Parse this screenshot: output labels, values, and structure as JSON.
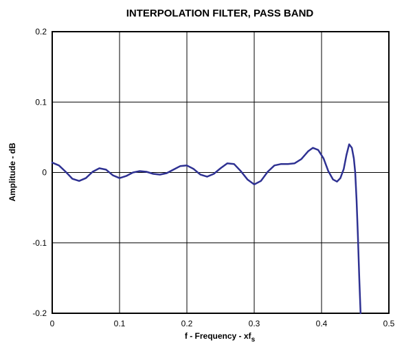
{
  "chart_data": {
    "type": "line",
    "title": "INTERPOLATION FILTER, PASS BAND",
    "xlabel": "f - Frequency - xf",
    "xlabel_subscript": "s",
    "ylabel": "Amplitude - dB",
    "xlim": [
      0,
      0.5
    ],
    "ylim": [
      -0.2,
      0.2
    ],
    "xticks": [
      "0",
      "0.1",
      "0.2",
      "0.3",
      "0.4",
      "0.5"
    ],
    "yticks": [
      "0.2",
      "0.1",
      "0",
      "-0.1",
      "-0.2"
    ],
    "grid": true,
    "line_color": "#2e3192",
    "series": [
      {
        "values": [
          [
            0.0,
            0.014
          ],
          [
            0.01,
            0.01
          ],
          [
            0.02,
            0.001
          ],
          [
            0.03,
            -0.009
          ],
          [
            0.04,
            -0.012
          ],
          [
            0.05,
            -0.008
          ],
          [
            0.06,
            0.001
          ],
          [
            0.07,
            0.006
          ],
          [
            0.08,
            0.004
          ],
          [
            0.09,
            -0.004
          ],
          [
            0.1,
            -0.008
          ],
          [
            0.11,
            -0.005
          ],
          [
            0.12,
            0.0
          ],
          [
            0.13,
            0.002
          ],
          [
            0.14,
            0.001
          ],
          [
            0.15,
            -0.002
          ],
          [
            0.16,
            -0.003
          ],
          [
            0.17,
            -0.001
          ],
          [
            0.18,
            0.004
          ],
          [
            0.19,
            0.009
          ],
          [
            0.2,
            0.01
          ],
          [
            0.21,
            0.005
          ],
          [
            0.22,
            -0.003
          ],
          [
            0.23,
            -0.006
          ],
          [
            0.24,
            -0.002
          ],
          [
            0.25,
            0.006
          ],
          [
            0.26,
            0.013
          ],
          [
            0.27,
            0.012
          ],
          [
            0.28,
            0.002
          ],
          [
            0.29,
            -0.01
          ],
          [
            0.3,
            -0.017
          ],
          [
            0.31,
            -0.012
          ],
          [
            0.32,
            0.001
          ],
          [
            0.33,
            0.01
          ],
          [
            0.34,
            0.012
          ],
          [
            0.35,
            0.012
          ],
          [
            0.36,
            0.013
          ],
          [
            0.37,
            0.019
          ],
          [
            0.38,
            0.03
          ],
          [
            0.387,
            0.035
          ],
          [
            0.395,
            0.032
          ],
          [
            0.403,
            0.02
          ],
          [
            0.41,
            0.002
          ],
          [
            0.417,
            -0.01
          ],
          [
            0.423,
            -0.013
          ],
          [
            0.428,
            -0.008
          ],
          [
            0.433,
            0.005
          ],
          [
            0.437,
            0.025
          ],
          [
            0.441,
            0.04
          ],
          [
            0.445,
            0.035
          ],
          [
            0.448,
            0.02
          ],
          [
            0.45,
            0.0
          ],
          [
            0.452,
            -0.04
          ],
          [
            0.454,
            -0.09
          ],
          [
            0.456,
            -0.15
          ],
          [
            0.458,
            -0.2
          ]
        ]
      }
    ]
  }
}
